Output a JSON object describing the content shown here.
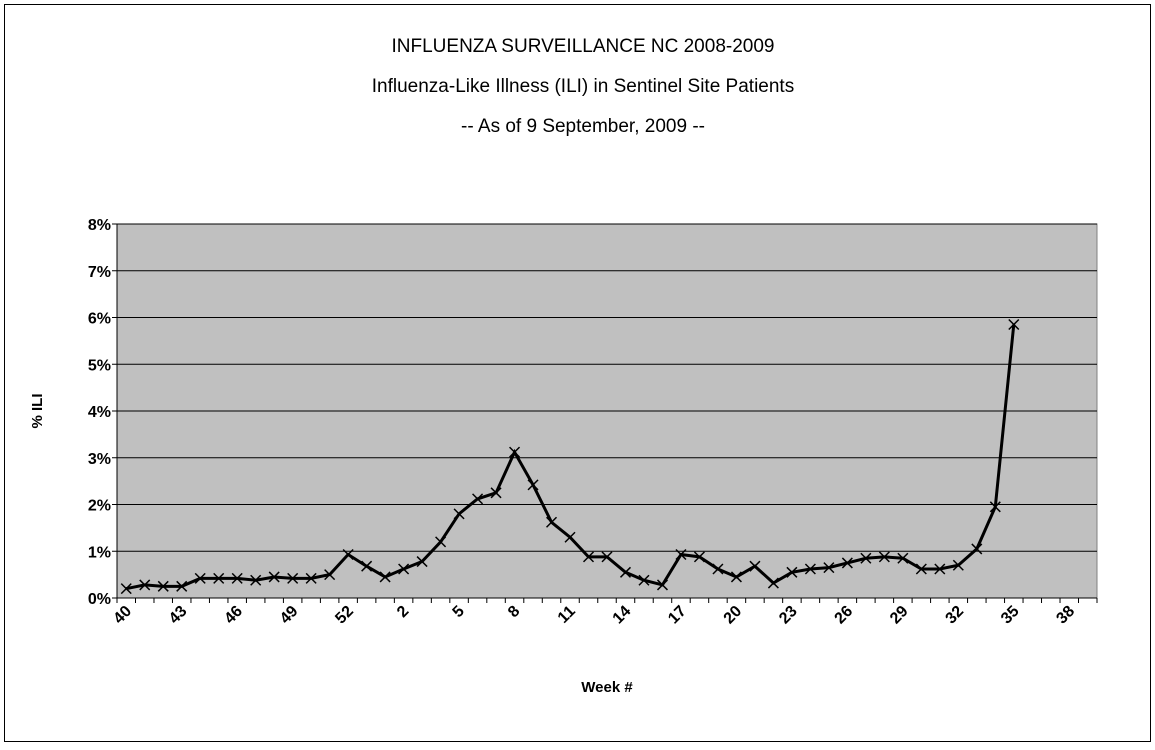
{
  "chart_data": {
    "type": "line",
    "title": "INFLUENZA SURVEILLANCE NC 2008-2009",
    "subtitle": "Influenza-Like Illness (ILI) in Sentinel Site Patients",
    "annotation": "-- As of 9 September, 2009 --",
    "x_label": "Week #",
    "y_label": "% ILI",
    "categories": [
      "40",
      null,
      null,
      "43",
      null,
      null,
      "46",
      null,
      null,
      "49",
      null,
      null,
      "52",
      null,
      null,
      "2",
      null,
      null,
      "5",
      null,
      null,
      "8",
      null,
      null,
      "11",
      null,
      null,
      "14",
      null,
      null,
      "17",
      null,
      null,
      "20",
      null,
      null,
      "23",
      null,
      null,
      "26",
      null,
      null,
      "29",
      null,
      null,
      "32",
      null,
      null,
      "35",
      null,
      null,
      "38",
      null
    ],
    "series": [
      {
        "color": "#000000",
        "values": [
          0.2,
          0.28,
          0.25,
          0.25,
          0.42,
          0.42,
          0.42,
          0.38,
          0.45,
          0.42,
          0.42,
          0.5,
          0.93,
          0.68,
          0.45,
          0.62,
          0.78,
          1.2,
          1.8,
          2.12,
          2.25,
          3.12,
          2.42,
          1.62,
          1.3,
          0.88,
          0.88,
          0.55,
          0.38,
          0.28,
          0.93,
          0.88,
          0.62,
          0.45,
          0.68,
          0.32,
          0.55,
          0.62,
          0.65,
          0.75,
          0.85,
          0.88,
          0.85,
          0.62,
          0.62,
          0.7,
          1.05,
          1.95,
          5.85,
          null,
          null,
          null,
          null
        ]
      }
    ],
    "ylim": [
      0,
      8
    ],
    "yticks": [
      {
        "value": 0,
        "label": "0%"
      },
      {
        "value": 1,
        "label": "1%"
      },
      {
        "value": 2,
        "label": "2%"
      },
      {
        "value": 3,
        "label": "3%"
      },
      {
        "value": 4,
        "label": "4%"
      },
      {
        "value": 5,
        "label": "5%"
      },
      {
        "value": 6,
        "label": "6%"
      },
      {
        "value": 7,
        "label": "7%"
      },
      {
        "value": 8,
        "label": "8%"
      }
    ],
    "grid": true,
    "plot_background": "#c0c0c0"
  }
}
